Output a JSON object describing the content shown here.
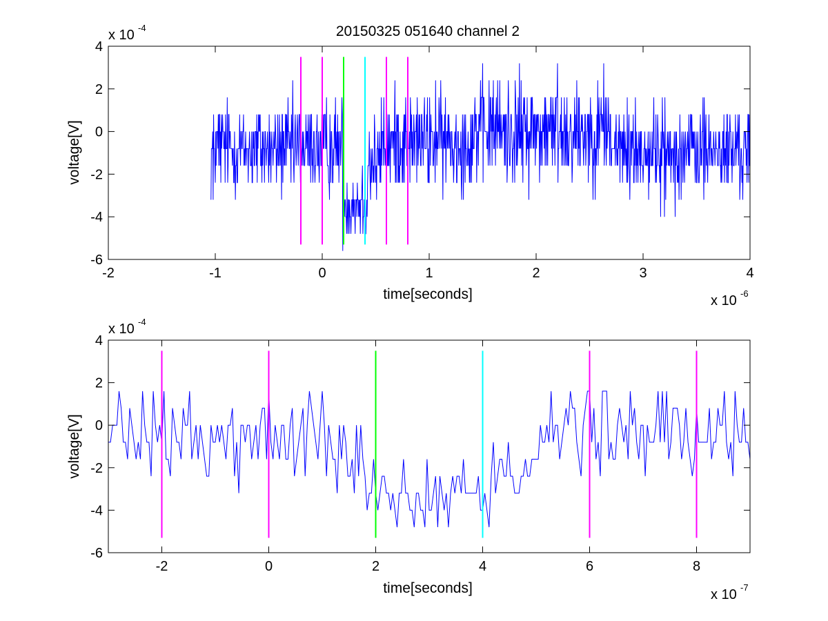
{
  "title": "20150325 051640 channel 2",
  "chart_data": [
    {
      "type": "line",
      "xlabel": "time[seconds]",
      "ylabel": "voltage[V]",
      "x_exponent_label": "x 10",
      "x_exponent": "-6",
      "y_exponent_label": "x 10",
      "y_exponent": "-4",
      "xlim": [
        -2e-06,
        4e-06
      ],
      "ylim": [
        -0.0006,
        0.0004
      ],
      "xticks": [
        -2e-06,
        -1e-06,
        0,
        1e-06,
        2e-06,
        3e-06,
        4e-06
      ],
      "xtick_labels": [
        "-2",
        "-1",
        "0",
        "1",
        "2",
        "3",
        "4"
      ],
      "yticks": [
        -0.0006,
        -0.0004,
        -0.0002,
        0,
        0.0002,
        0.0004
      ],
      "ytick_labels": [
        "-6",
        "-4",
        "-2",
        "0",
        "2",
        "4"
      ],
      "series": [
        {
          "color": "#0000ff",
          "x_start": -1.04e-06,
          "x_end": 4e-06,
          "sample_step": 4e-09,
          "levels": [
            {
              "from": -1.04e-06,
              "to": 1.9e-07,
              "mean": -8e-05,
              "spread": 0.00011
            },
            {
              "from": 1.9e-07,
              "to": 4.2e-07,
              "mean": -0.00033,
              "spread": 9e-05
            },
            {
              "from": 4.2e-07,
              "to": 5.5e-07,
              "mean": -0.00015,
              "spread": 0.00011
            },
            {
              "from": 5.5e-07,
              "to": 1.4e-06,
              "mean": -5e-05,
              "spread": 0.00011
            },
            {
              "from": 1.4e-06,
              "to": 2.7e-06,
              "mean": 0.0,
              "spread": 0.00012
            },
            {
              "from": 2.7e-06,
              "to": 4e-06,
              "mean": -9e-05,
              "spread": 0.00011
            }
          ],
          "extremes": [
            {
              "x": 1.06e-06,
              "y": 0.00024
            },
            {
              "x": 1.6e-06,
              "y": 0.00024
            },
            {
              "x": 2.2e-06,
              "y": 0.00032
            },
            {
              "x": 2.63e-06,
              "y": 0.00032
            },
            {
              "x": 3.2e-06,
              "y": -0.0004
            },
            {
              "x": 2.5e-07,
              "y": -0.00048
            },
            {
              "x": -1.02e-06,
              "y": -0.00032
            }
          ]
        }
      ],
      "vlines": [
        {
          "x": -2e-07,
          "y0": -0.00053,
          "y1": 0.00035,
          "color": "#ff00ff"
        },
        {
          "x": 0,
          "y0": -0.00053,
          "y1": 0.00035,
          "color": "#ff00ff"
        },
        {
          "x": 2e-07,
          "y0": -0.00053,
          "y1": 0.00035,
          "color": "#00ff00"
        },
        {
          "x": 4e-07,
          "y0": -0.00053,
          "y1": 0.00035,
          "color": "#00ffff"
        },
        {
          "x": 6e-07,
          "y0": -0.00053,
          "y1": 0.00035,
          "color": "#ff00ff"
        },
        {
          "x": 8e-07,
          "y0": -0.00053,
          "y1": 0.00035,
          "color": "#ff00ff"
        }
      ]
    },
    {
      "type": "line",
      "xlabel": "time[seconds]",
      "ylabel": "voltage[V]",
      "x_exponent_label": "x 10",
      "x_exponent": "-7",
      "y_exponent_label": "x 10",
      "y_exponent": "-4",
      "xlim": [
        -3e-07,
        9e-07
      ],
      "ylim": [
        -0.0006,
        0.0004
      ],
      "xticks": [
        -2e-07,
        0,
        2e-07,
        4e-07,
        6e-07,
        8e-07
      ],
      "xtick_labels": [
        "-2",
        "0",
        "2",
        "4",
        "6",
        "8"
      ],
      "yticks": [
        -0.0006,
        -0.0004,
        -0.0002,
        0,
        0.0002,
        0.0004
      ],
      "ytick_labels": [
        "-6",
        "-4",
        "-2",
        "0",
        "2",
        "4"
      ],
      "series": [
        {
          "color": "#0000ff",
          "x_start": -3e-07,
          "x_end": 9e-07,
          "sample_step": 4e-09,
          "levels": [
            {
              "from": -3e-07,
              "to": 1.75e-07,
              "mean": -6e-05,
              "spread": 0.0001
            },
            {
              "from": 1.75e-07,
              "to": 2e-07,
              "mean": -0.00024,
              "spread": 8e-05
            },
            {
              "from": 2e-07,
              "to": 4.15e-07,
              "mean": -0.00033,
              "spread": 8e-05
            },
            {
              "from": 4.15e-07,
              "to": 5e-07,
              "mean": -0.00018,
              "spread": 0.0001
            },
            {
              "from": 5e-07,
              "to": 9e-07,
              "mean": -4e-05,
              "spread": 0.0001
            }
          ],
          "extremes": [
            {
              "x": -2.8e-07,
              "y": 0.00016
            },
            {
              "x": 0.0,
              "y": 0.00016
            },
            {
              "x": 1e-07,
              "y": 0.00016
            },
            {
              "x": -5.5e-08,
              "y": -0.00032
            },
            {
              "x": 2.4e-07,
              "y": -0.00048
            },
            {
              "x": 4.1e-07,
              "y": -0.00048
            },
            {
              "x": 5.65e-07,
              "y": 0.00016
            },
            {
              "x": 5.95e-07,
              "y": 0.00016
            },
            {
              "x": 8.7e-07,
              "y": 0.00016
            },
            {
              "x": 7.9e-07,
              "y": -0.00024
            }
          ]
        }
      ],
      "vlines": [
        {
          "x": -2e-07,
          "y0": -0.00053,
          "y1": 0.00035,
          "color": "#ff00ff"
        },
        {
          "x": 0,
          "y0": -0.00053,
          "y1": 0.00035,
          "color": "#ff00ff"
        },
        {
          "x": 2e-07,
          "y0": -0.00053,
          "y1": 0.00035,
          "color": "#00ff00"
        },
        {
          "x": 4e-07,
          "y0": -0.00053,
          "y1": 0.00035,
          "color": "#00ffff"
        },
        {
          "x": 6e-07,
          "y0": -0.00053,
          "y1": 0.00035,
          "color": "#ff00ff"
        },
        {
          "x": 8e-07,
          "y0": -0.00053,
          "y1": 0.00035,
          "color": "#ff00ff"
        }
      ]
    }
  ]
}
